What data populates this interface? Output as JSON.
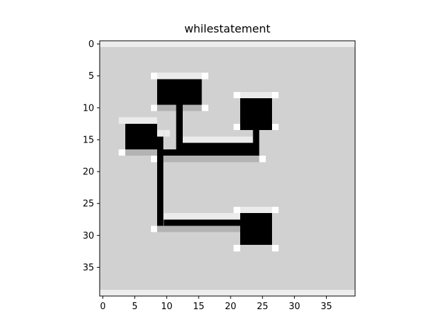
{
  "chart_data": {
    "type": "heatmap",
    "title": "whilestatement",
    "colormap": "gray_r",
    "background_value": 0.18,
    "grid": false,
    "xlim": [
      -0.5,
      39.5
    ],
    "ylim": [
      39.5,
      -0.5
    ],
    "xticks": [
      0,
      5,
      10,
      15,
      20,
      25,
      30,
      35
    ],
    "yticks": [
      0,
      5,
      10,
      15,
      20,
      25,
      30,
      35
    ],
    "xtick_labels": [
      "0",
      "5",
      "10",
      "15",
      "20",
      "25",
      "30",
      "35"
    ],
    "ytick_labels": [
      "0",
      "5",
      "10",
      "15",
      "20",
      "25",
      "30",
      "35"
    ],
    "rects": [
      {
        "x0": 0,
        "x1": 39,
        "y0": 0,
        "y1": 0,
        "v": 0.07
      },
      {
        "x0": 0,
        "x1": 39,
        "y0": 39,
        "y1": 39,
        "v": 0.07
      },
      {
        "x0": 8,
        "x1": 16,
        "y0": 5,
        "y1": 5,
        "v": 0.08
      },
      {
        "x0": 8,
        "x1": 8,
        "y0": 5,
        "y1": 5,
        "v": 0.0
      },
      {
        "x0": 16,
        "x1": 16,
        "y0": 5,
        "y1": 5,
        "v": 0.0
      },
      {
        "x0": 9,
        "x1": 15,
        "y0": 10,
        "y1": 10,
        "v": 0.3
      },
      {
        "x0": 8,
        "x1": 8,
        "y0": 10,
        "y1": 10,
        "v": 0.0
      },
      {
        "x0": 16,
        "x1": 16,
        "y0": 10,
        "y1": 10,
        "v": 0.0
      },
      {
        "x0": 9,
        "x1": 15,
        "y0": 6,
        "y1": 9,
        "v": 1.0
      },
      {
        "x0": 12,
        "x1": 12,
        "y0": 10,
        "y1": 16,
        "v": 1.0
      },
      {
        "x0": 21,
        "x1": 27,
        "y0": 8,
        "y1": 8,
        "v": 0.08
      },
      {
        "x0": 21,
        "x1": 21,
        "y0": 8,
        "y1": 8,
        "v": 0.0
      },
      {
        "x0": 27,
        "x1": 27,
        "y0": 8,
        "y1": 8,
        "v": 0.0
      },
      {
        "x0": 21,
        "x1": 21,
        "y0": 13,
        "y1": 13,
        "v": 0.0
      },
      {
        "x0": 27,
        "x1": 27,
        "y0": 13,
        "y1": 13,
        "v": 0.0
      },
      {
        "x0": 22,
        "x1": 26,
        "y0": 9,
        "y1": 13,
        "v": 1.0
      },
      {
        "x0": 24,
        "x1": 24,
        "y0": 14,
        "y1": 16,
        "v": 1.0
      },
      {
        "x0": 3,
        "x1": 8,
        "y0": 12,
        "y1": 12,
        "v": 0.08
      },
      {
        "x0": 4,
        "x1": 8,
        "y0": 17,
        "y1": 17,
        "v": 0.3
      },
      {
        "x0": 3,
        "x1": 3,
        "y0": 17,
        "y1": 17,
        "v": 0.0
      },
      {
        "x0": 4,
        "x1": 8,
        "y0": 13,
        "y1": 16,
        "v": 1.0
      },
      {
        "x0": 9,
        "x1": 9,
        "y0": 14,
        "y1": 14,
        "v": 0.08
      },
      {
        "x0": 10,
        "x1": 10,
        "y0": 14,
        "y1": 14,
        "v": 0.08
      },
      {
        "x0": 9,
        "x1": 24,
        "y0": 17,
        "y1": 17,
        "v": 1.0
      },
      {
        "x0": 13,
        "x1": 23,
        "y0": 16,
        "y1": 16,
        "v": 1.0
      },
      {
        "x0": 13,
        "x1": 23,
        "y0": 15,
        "y1": 15,
        "v": 0.08
      },
      {
        "x0": 9,
        "x1": 24,
        "y0": 18,
        "y1": 18,
        "v": 0.3
      },
      {
        "x0": 8,
        "x1": 8,
        "y0": 18,
        "y1": 18,
        "v": 0.0
      },
      {
        "x0": 25,
        "x1": 25,
        "y0": 18,
        "y1": 18,
        "v": 0.0
      },
      {
        "x0": 9,
        "x1": 9,
        "y0": 15,
        "y1": 28,
        "v": 1.0
      },
      {
        "x0": 10,
        "x1": 21,
        "y0": 28,
        "y1": 28,
        "v": 1.0
      },
      {
        "x0": 10,
        "x1": 21,
        "y0": 27,
        "y1": 27,
        "v": 0.08
      },
      {
        "x0": 9,
        "x1": 21,
        "y0": 29,
        "y1": 29,
        "v": 0.3
      },
      {
        "x0": 8,
        "x1": 8,
        "y0": 29,
        "y1": 29,
        "v": 0.0
      },
      {
        "x0": 21,
        "x1": 27,
        "y0": 26,
        "y1": 26,
        "v": 0.08
      },
      {
        "x0": 21,
        "x1": 21,
        "y0": 26,
        "y1": 26,
        "v": 0.0
      },
      {
        "x0": 27,
        "x1": 27,
        "y0": 26,
        "y1": 26,
        "v": 0.0
      },
      {
        "x0": 22,
        "x1": 26,
        "y0": 27,
        "y1": 31,
        "v": 1.0
      },
      {
        "x0": 21,
        "x1": 21,
        "y0": 32,
        "y1": 32,
        "v": 0.0
      },
      {
        "x0": 27,
        "x1": 27,
        "y0": 32,
        "y1": 32,
        "v": 0.0
      }
    ]
  }
}
